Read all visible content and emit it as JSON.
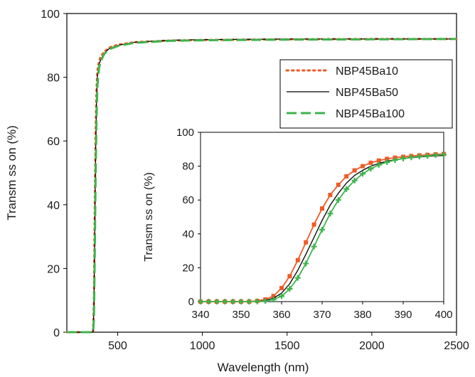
{
  "chart_data": [
    {
      "type": "line",
      "xlabel": "Wavelength (nm)",
      "ylabel": "Transm ss on (%)",
      "xlim": [
        200,
        2500
      ],
      "ylim": [
        0,
        100
      ],
      "xticks": [
        500,
        1000,
        1500,
        2000,
        2500
      ],
      "xtick_labels": [
        "500",
        "1000",
        "1500",
        "2000",
        "2500"
      ],
      "yticks": [
        0,
        20,
        40,
        60,
        80,
        100
      ],
      "ytick_labels": [
        "0",
        "20",
        "40",
        "60",
        "80",
        "100"
      ],
      "grid": false,
      "legend_position": "top-right",
      "series": [
        {
          "name": "NBP45Ba10",
          "color": "#ef5a28",
          "style": "dotted",
          "x": [
            200,
            300,
            350,
            355,
            360,
            365,
            370,
            375,
            380,
            390,
            400,
            420,
            450,
            500,
            600,
            800,
            1000,
            1500,
            2000,
            2500
          ],
          "y": [
            0,
            0,
            0,
            0.3,
            10,
            40,
            64,
            76,
            82,
            85,
            86.5,
            88,
            89.3,
            90.2,
            91,
            91.5,
            91.7,
            91.9,
            92,
            92
          ]
        },
        {
          "name": "NBP45Ba50",
          "color": "#000000",
          "style": "solid",
          "x": [
            200,
            300,
            350,
            355,
            360,
            365,
            370,
            375,
            380,
            390,
            400,
            420,
            450,
            500,
            600,
            800,
            1000,
            1500,
            2000,
            2500
          ],
          "y": [
            0,
            0,
            0,
            0.2,
            7,
            33,
            57,
            72,
            80,
            84,
            85.5,
            87.5,
            89,
            90,
            91,
            91.6,
            91.8,
            92,
            92,
            92
          ]
        },
        {
          "name": "NBP45Ba100",
          "color": "#3cb44b",
          "style": "dashed",
          "x": [
            200,
            300,
            350,
            355,
            360,
            365,
            370,
            375,
            380,
            390,
            400,
            420,
            450,
            500,
            600,
            800,
            1000,
            1500,
            2000,
            2500
          ],
          "y": [
            0,
            0,
            0,
            0.1,
            4,
            25,
            50,
            67,
            77,
            83,
            85,
            87.3,
            88.8,
            89.8,
            90.8,
            91.4,
            91.6,
            91.8,
            91.9,
            92
          ]
        }
      ]
    },
    {
      "type": "line",
      "xlabel": "",
      "ylabel": "Transm ss on (%)",
      "xlim": [
        340,
        400
      ],
      "ylim": [
        0,
        100
      ],
      "xticks": [
        340,
        350,
        360,
        370,
        380,
        390,
        400
      ],
      "xtick_labels": [
        "340",
        "350",
        "360",
        "370",
        "380",
        "390",
        "400"
      ],
      "yticks": [
        0,
        20,
        40,
        60,
        80,
        100
      ],
      "ytick_labels": [
        "0",
        "20",
        "40",
        "60",
        "80",
        "100"
      ],
      "grid": false,
      "series": [
        {
          "name": "NBP45Ba10",
          "color": "#ef5a28",
          "marker": "square",
          "x": [
            340,
            342,
            344,
            346,
            348,
            350,
            352,
            354,
            356,
            358,
            360,
            362,
            364,
            366,
            368,
            370,
            372,
            374,
            376,
            378,
            380,
            382,
            384,
            386,
            388,
            390,
            392,
            394,
            396,
            398,
            400
          ],
          "y": [
            0,
            0,
            0,
            0,
            0,
            0,
            0,
            0.4,
            1.3,
            3.3,
            8,
            15,
            24.5,
            35,
            45.5,
            55,
            63,
            69,
            74,
            77.5,
            80,
            82,
            83.3,
            84.3,
            85,
            85.5,
            86,
            86.4,
            86.7,
            87,
            87.2
          ]
        },
        {
          "name": "NBP45Ba50",
          "color": "#000000",
          "x": [
            340,
            342,
            344,
            346,
            348,
            350,
            352,
            354,
            356,
            358,
            360,
            362,
            364,
            366,
            368,
            370,
            372,
            374,
            376,
            378,
            380,
            382,
            384,
            386,
            388,
            390,
            392,
            394,
            396,
            398,
            400
          ],
          "y": [
            0,
            0,
            0,
            0,
            0,
            0,
            0,
            0.2,
            0.7,
            2,
            5,
            10.5,
            18.5,
            28,
            38,
            48,
            57,
            64,
            70,
            74.5,
            77.5,
            80,
            81.7,
            82.9,
            83.8,
            84.5,
            85,
            85.4,
            85.8,
            86.1,
            86.3
          ]
        },
        {
          "name": "NBP45Ba100",
          "color": "#3cb44b",
          "marker": "cross",
          "x": [
            340,
            342,
            344,
            346,
            348,
            350,
            352,
            354,
            356,
            358,
            360,
            362,
            364,
            366,
            368,
            370,
            372,
            374,
            376,
            378,
            380,
            382,
            384,
            386,
            388,
            390,
            392,
            394,
            396,
            398,
            400
          ],
          "y": [
            0,
            0,
            0,
            0,
            0,
            0,
            0,
            0.1,
            0.4,
            1.2,
            3.2,
            7.5,
            14,
            22.5,
            32.5,
            42.5,
            52,
            60,
            66.5,
            71.5,
            75.5,
            78.5,
            80.8,
            82.4,
            83.6,
            84.5,
            85.2,
            85.7,
            86.1,
            86.5,
            86.8
          ]
        }
      ]
    }
  ]
}
